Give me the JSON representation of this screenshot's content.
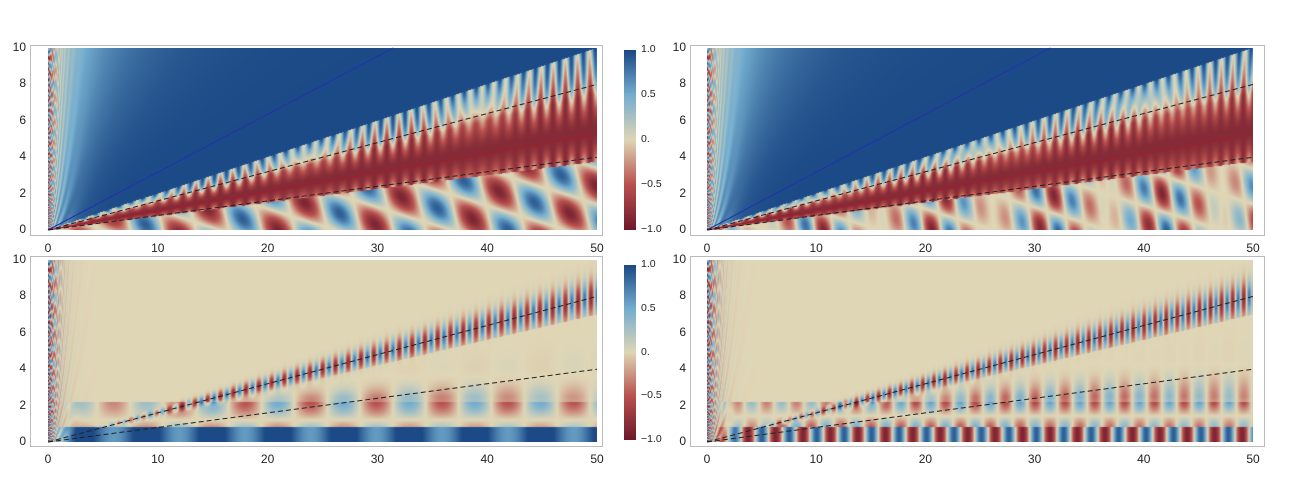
{
  "chart_data": [
    {
      "type": "heatmap",
      "panel": "top-left",
      "xlim": [
        0,
        50
      ],
      "ylim": [
        0,
        10
      ],
      "xticks": [
        "0",
        "10",
        "20",
        "30",
        "40",
        "50"
      ],
      "yticks": [
        "0",
        "2",
        "4",
        "6",
        "8",
        "10"
      ],
      "overlay_lines": [
        {
          "style": "solid",
          "color": "#2233aa",
          "slope": 0.318
        },
        {
          "style": "solid",
          "color": "#a01e2e",
          "slope": 0.105
        },
        {
          "style": "dashed",
          "color": "#222222",
          "slope": 0.16
        },
        {
          "style": "dashed",
          "color": "#222222",
          "slope": 0.08
        }
      ]
    },
    {
      "type": "heatmap",
      "panel": "top-right",
      "xlim": [
        0,
        50
      ],
      "ylim": [
        0,
        10
      ],
      "xticks": [
        "0",
        "10",
        "20",
        "30",
        "40",
        "50"
      ],
      "yticks": [
        "0",
        "2",
        "4",
        "6",
        "8",
        "10"
      ],
      "overlay_lines": [
        {
          "style": "solid",
          "color": "#2233aa",
          "slope": 0.318
        },
        {
          "style": "solid",
          "color": "#a01e2e",
          "slope": 0.105
        },
        {
          "style": "dashed",
          "color": "#222222",
          "slope": 0.16
        },
        {
          "style": "dashed",
          "color": "#222222",
          "slope": 0.08
        }
      ]
    },
    {
      "type": "heatmap",
      "panel": "bottom-left",
      "xlim": [
        0,
        50
      ],
      "ylim": [
        0,
        10
      ],
      "xticks": [
        "0",
        "10",
        "20",
        "30",
        "40",
        "50"
      ],
      "yticks": [
        "0",
        "2",
        "4",
        "6",
        "8",
        "10"
      ],
      "overlay_lines": [
        {
          "style": "dashed",
          "color": "#222222",
          "slope": 0.16
        },
        {
          "style": "dashed",
          "color": "#222222",
          "slope": 0.08
        }
      ]
    },
    {
      "type": "heatmap",
      "panel": "bottom-right",
      "xlim": [
        0,
        50
      ],
      "ylim": [
        0,
        10
      ],
      "xticks": [
        "0",
        "10",
        "20",
        "30",
        "40",
        "50"
      ],
      "yticks": [
        "0",
        "2",
        "4",
        "6",
        "8",
        "10"
      ],
      "overlay_lines": [
        {
          "style": "dashed",
          "color": "#222222",
          "slope": 0.16
        },
        {
          "style": "dashed",
          "color": "#222222",
          "slope": 0.08
        }
      ]
    }
  ],
  "colorbars": [
    {
      "range": [
        -1,
        1
      ],
      "labels": [
        "1.0",
        "0.5",
        "0.",
        "−0.5",
        "−1.0"
      ]
    },
    {
      "range": [
        -1,
        1
      ],
      "labels": [
        "1.0",
        "0.5",
        "0.",
        "−0.5",
        "−1.0"
      ]
    }
  ],
  "colormap": [
    "#6e1a2c",
    "#b9524f",
    "#dfd6b6",
    "#74aed0",
    "#1c4a86"
  ]
}
